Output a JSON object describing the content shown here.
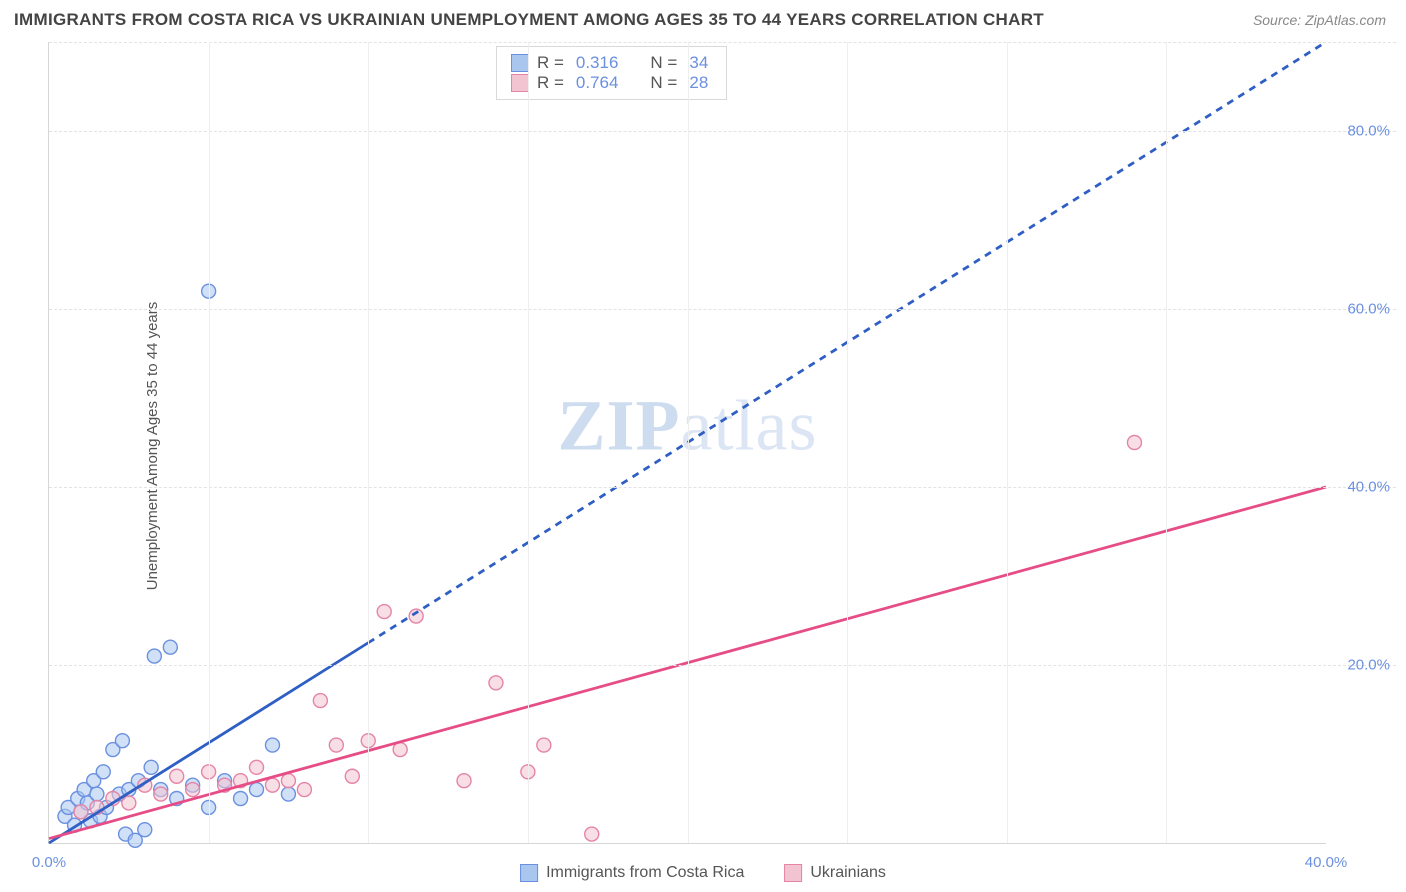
{
  "title": "IMMIGRANTS FROM COSTA RICA VS UKRAINIAN UNEMPLOYMENT AMONG AGES 35 TO 44 YEARS CORRELATION CHART",
  "source": "Source: ZipAtlas.com",
  "y_axis_label": "Unemployment Among Ages 35 to 44 years",
  "watermark": {
    "bold": "ZIP",
    "rest": "atlas"
  },
  "chart": {
    "type": "scatter",
    "xlim": [
      0,
      40
    ],
    "ylim": [
      0,
      90
    ],
    "x_ticks": [
      0,
      40
    ],
    "x_tick_labels": [
      "0.0%",
      "40.0%"
    ],
    "y_ticks": [
      20,
      40,
      60,
      80
    ],
    "y_tick_labels": [
      "20.0%",
      "40.0%",
      "60.0%",
      "80.0%"
    ],
    "x_minor_gridlines_every": 5,
    "grid_color": "#e3e3e3",
    "background_color": "#ffffff",
    "label_color": "#6b90e0",
    "marker_radius": 7,
    "marker_stroke_width": 1.4,
    "series": [
      {
        "id": "costa_rica",
        "name": "Immigrants from Costa Rica",
        "fill": "#a9c6ee",
        "stroke": "#6b90e0",
        "line_color": "#2f5fc4",
        "line_width": 2.8,
        "line_dash": "solid_then_dashed",
        "line_dash_break_x": 10,
        "regression": {
          "x1": 0,
          "y1": 0,
          "x2": 40,
          "y2": 90
        },
        "R": "0.316",
        "N": "34",
        "points": [
          [
            0.5,
            3.0
          ],
          [
            0.6,
            4.0
          ],
          [
            0.8,
            2.0
          ],
          [
            0.9,
            5.0
          ],
          [
            1.0,
            3.5
          ],
          [
            1.1,
            6.0
          ],
          [
            1.2,
            4.5
          ],
          [
            1.3,
            2.5
          ],
          [
            1.4,
            7.0
          ],
          [
            1.5,
            5.5
          ],
          [
            1.6,
            3.0
          ],
          [
            1.7,
            8.0
          ],
          [
            1.8,
            4.0
          ],
          [
            2.0,
            10.5
          ],
          [
            2.2,
            5.5
          ],
          [
            2.3,
            11.5
          ],
          [
            2.4,
            1.0
          ],
          [
            2.5,
            6.0
          ],
          [
            2.7,
            0.3
          ],
          [
            2.8,
            7.0
          ],
          [
            3.0,
            1.5
          ],
          [
            3.2,
            8.5
          ],
          [
            3.3,
            21.0
          ],
          [
            3.5,
            6.0
          ],
          [
            3.8,
            22.0
          ],
          [
            4.0,
            5.0
          ],
          [
            4.5,
            6.5
          ],
          [
            5.0,
            4.0
          ],
          [
            5.0,
            62.0
          ],
          [
            5.5,
            7.0
          ],
          [
            6.0,
            5.0
          ],
          [
            6.5,
            6.0
          ],
          [
            7.0,
            11.0
          ],
          [
            7.5,
            5.5
          ]
        ]
      },
      {
        "id": "ukrainians",
        "name": "Ukrainians",
        "fill": "#f2c4d2",
        "stroke": "#e584a6",
        "line_color": "#e64d86",
        "line_width": 2.8,
        "line_dash": "solid",
        "regression": {
          "x1": 0,
          "y1": 0.5,
          "x2": 40,
          "y2": 40
        },
        "R": "0.764",
        "N": "28",
        "points": [
          [
            1.0,
            3.5
          ],
          [
            1.5,
            4.0
          ],
          [
            2.0,
            5.0
          ],
          [
            2.5,
            4.5
          ],
          [
            3.0,
            6.5
          ],
          [
            3.5,
            5.5
          ],
          [
            4.0,
            7.5
          ],
          [
            4.5,
            6.0
          ],
          [
            5.0,
            8.0
          ],
          [
            5.5,
            6.5
          ],
          [
            6.0,
            7.0
          ],
          [
            6.5,
            8.5
          ],
          [
            7.0,
            6.5
          ],
          [
            7.5,
            7.0
          ],
          [
            8.0,
            6.0
          ],
          [
            8.5,
            16.0
          ],
          [
            9.0,
            11.0
          ],
          [
            9.5,
            7.5
          ],
          [
            10.0,
            11.5
          ],
          [
            10.5,
            26.0
          ],
          [
            11.0,
            10.5
          ],
          [
            11.5,
            25.5
          ],
          [
            13.0,
            7.0
          ],
          [
            14.0,
            18.0
          ],
          [
            15.0,
            8.0
          ],
          [
            15.5,
            11.0
          ],
          [
            17.0,
            1.0
          ],
          [
            34.0,
            45.0
          ]
        ]
      }
    ]
  },
  "top_legend": {
    "rows": [
      {
        "swatch_series": "costa_rica",
        "r_label": "R =",
        "r_value": "0.316",
        "n_label": "N =",
        "n_value": "34"
      },
      {
        "swatch_series": "ukrainians",
        "r_label": "R =",
        "r_value": "0.764",
        "n_label": "N =",
        "n_value": "28"
      }
    ]
  }
}
